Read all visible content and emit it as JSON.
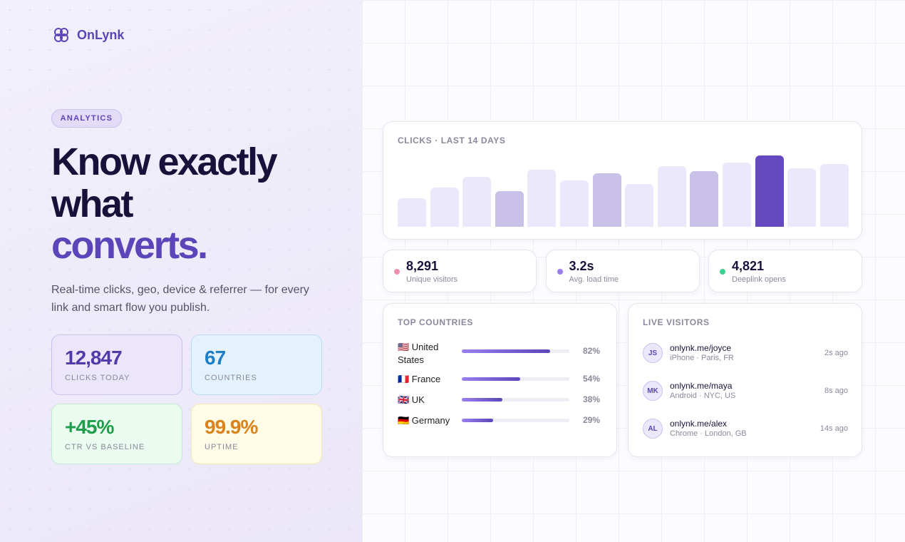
{
  "brand": "OnLynk",
  "hero": {
    "badge": "ANALYTICS",
    "lines": [
      "Know exactly",
      "what"
    ],
    "highlight": "converts",
    "highlight_end": ".",
    "description": "Real-time clicks, geo, device & referrer — for every link and smart flow you publish."
  },
  "stats": [
    {
      "value": "12,847",
      "label": "CLICKS TODAY"
    },
    {
      "value": "67",
      "label": "COUNTRIES"
    },
    {
      "value": "+45%",
      "label": "CTR VS BASELINE"
    },
    {
      "value": "99.9%",
      "label": "UPTIME"
    }
  ],
  "chart_data": {
    "type": "bar",
    "title": "CLICKS · LAST 14 DAYS",
    "values": [
      40,
      55,
      70,
      50,
      80,
      65,
      75,
      60,
      85,
      78,
      90,
      100,
      82,
      88
    ],
    "colors": [
      "#ece8fb",
      "#ece8fb",
      "#ece8fb",
      "#c9c0e8",
      "#ece8fb",
      "#ece8fb",
      "#c9c0e8",
      "#ece8fb",
      "#ece8fb",
      "#c9c0e8",
      "#ece8fb",
      "#6549c0",
      "#ece8fb",
      "#ece8fb"
    ]
  },
  "metrics": [
    {
      "value": "8,291",
      "label": "Unique visitors",
      "color": "#f08fb0"
    },
    {
      "value": "3.2s",
      "label": "Avg. load time",
      "color": "#9b7ef0"
    },
    {
      "value": "4,821",
      "label": "Deeplink opens",
      "color": "#3ccf8e"
    }
  ],
  "countries": {
    "title": "TOP COUNTRIES",
    "categories": [
      "🇺🇸 United States",
      "🇫🇷 France",
      "🇬🇧 UK",
      "🇩🇪 Germany"
    ],
    "values": [
      82,
      54,
      38,
      29
    ],
    "value_labels": [
      "82%",
      "54%",
      "38%",
      "29%"
    ]
  },
  "live": {
    "title": "LIVE VISITORS",
    "visitors": [
      {
        "initials": "JS",
        "link": "onlynk.me/joyce",
        "detail": "iPhone · Paris, FR",
        "time": "2s ago"
      },
      {
        "initials": "MK",
        "link": "onlynk.me/maya",
        "detail": "Android · NYC, US",
        "time": "8s ago"
      },
      {
        "initials": "AL",
        "link": "onlynk.me/alex",
        "detail": "Chrome · London, GB",
        "time": "14s ago"
      }
    ]
  }
}
